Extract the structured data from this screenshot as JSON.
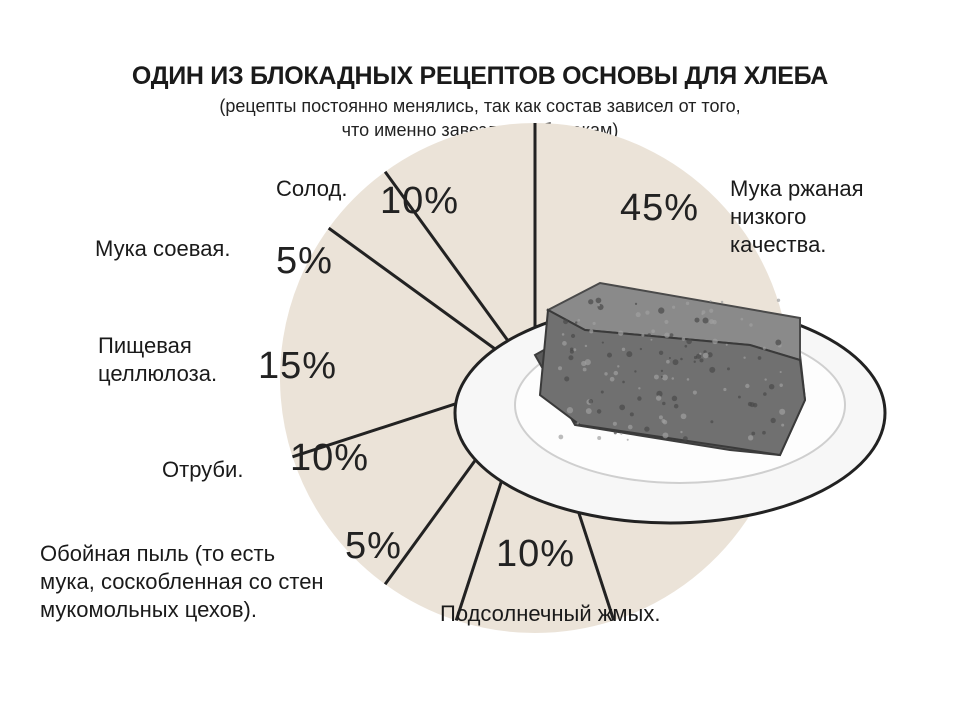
{
  "title": "ОДИН ИЗ БЛОКАДНЫХ РЕЦЕПТОВ ОСНОВЫ ДЛЯ ХЛЕБА",
  "subtitle_lines": [
    "(рецепты постоянно менялись, так как состав зависел от того,",
    "что именно завезли хлебопекам)"
  ],
  "colors": {
    "pie_fill": "#ebe3d8",
    "divider": "#222222",
    "plate": "#f7f7f7",
    "plate_rim": "#222222",
    "bread": "#707070"
  },
  "chart_data": {
    "type": "pie",
    "title": "ОДИН ИЗ БЛОКАДНЫХ РЕЦЕПТОВ ОСНОВЫ ДЛЯ ХЛЕБА",
    "slices": [
      {
        "label_lines": [
          "Мука ржаная",
          "низкого",
          "качества."
        ],
        "value": 45,
        "value_label": "45%"
      },
      {
        "label_lines": [
          "Подсолнечный жмых."
        ],
        "value": 10,
        "value_label": "10%"
      },
      {
        "label_lines": [
          "Обойная пыль (то есть",
          "мука, соскобленная со стен",
          "мукомольных цехов)."
        ],
        "value": 5,
        "value_label": "5%"
      },
      {
        "label_lines": [
          "Отруби."
        ],
        "value": 10,
        "value_label": "10%"
      },
      {
        "label_lines": [
          "Пищевая",
          "целлюлоза."
        ],
        "value": 15,
        "value_label": "15%"
      },
      {
        "label_lines": [
          "Мука соевая."
        ],
        "value": 5,
        "value_label": "5%"
      },
      {
        "label_lines": [
          "Солод."
        ],
        "value": 10,
        "value_label": "10%"
      }
    ]
  }
}
